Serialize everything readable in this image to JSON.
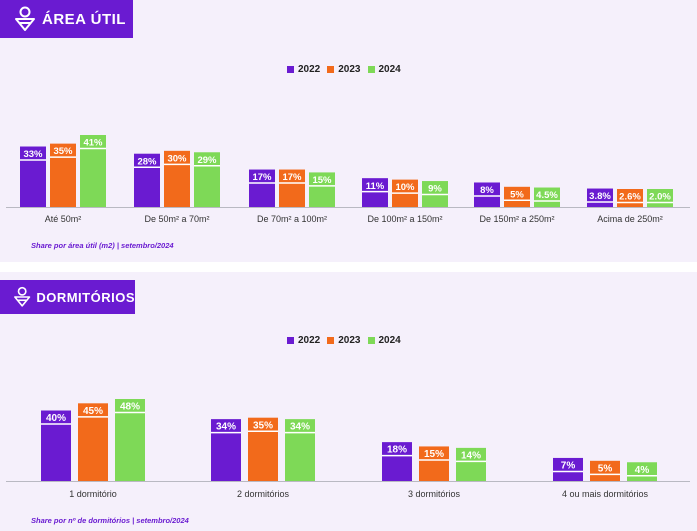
{
  "colors": {
    "purple": "#6a1bd1",
    "orange": "#f26a1b",
    "green": "#7ed957",
    "axis": "#b9b9c2"
  },
  "chart_data": [
    {
      "type": "bar",
      "title": "ÁREA ÚTIL",
      "title_icon": "location-pin-icon",
      "categories": [
        "Até 50m²",
        "De 50m² a 70m²",
        "De 70m² a 100m²",
        "De 100m² a 150m²",
        "De 150m² a 250m²",
        "Acima de 250m²"
      ],
      "series": [
        {
          "name": "2022",
          "color": "#6a1bd1",
          "values": [
            33,
            28,
            17,
            11,
            8,
            3.8
          ],
          "labels": [
            "33%",
            "28%",
            "17%",
            "11%",
            "8%",
            "3.8%"
          ]
        },
        {
          "name": "2023",
          "color": "#f26a1b",
          "values": [
            35,
            30,
            17,
            10,
            5,
            2.6
          ],
          "labels": [
            "35%",
            "30%",
            "17%",
            "10%",
            "5%",
            "2.6%"
          ]
        },
        {
          "name": "2024",
          "color": "#7ed957",
          "values": [
            41,
            29,
            15,
            9,
            4.5,
            2.0
          ],
          "labels": [
            "41%",
            "29%",
            "15%",
            "9%",
            "4.5%",
            "2.0%"
          ]
        }
      ],
      "legend_position": "top-center",
      "footnote": "Share por área útil (m2) | setembro/2024"
    },
    {
      "type": "bar",
      "title": "DORMITÓRIOS",
      "title_icon": "location-pin-icon",
      "categories": [
        "1 dormitório",
        "2 dormitórios",
        "3 dormitórios",
        "4 ou mais dormitórios"
      ],
      "series": [
        {
          "name": "2022",
          "color": "#6a1bd1",
          "values": [
            40,
            34,
            18,
            7
          ],
          "labels": [
            "40%",
            "34%",
            "18%",
            "7%"
          ]
        },
        {
          "name": "2023",
          "color": "#f26a1b",
          "values": [
            45,
            35,
            15,
            5
          ],
          "labels": [
            "45%",
            "35%",
            "15%",
            "5%"
          ]
        },
        {
          "name": "2024",
          "color": "#7ed957",
          "values": [
            48,
            34,
            14,
            4
          ],
          "labels": [
            "48%",
            "34%",
            "14%",
            "4%"
          ]
        }
      ],
      "legend_position": "top-center",
      "footnote": "Share por nº de dormitórios | setembro/2024"
    }
  ]
}
